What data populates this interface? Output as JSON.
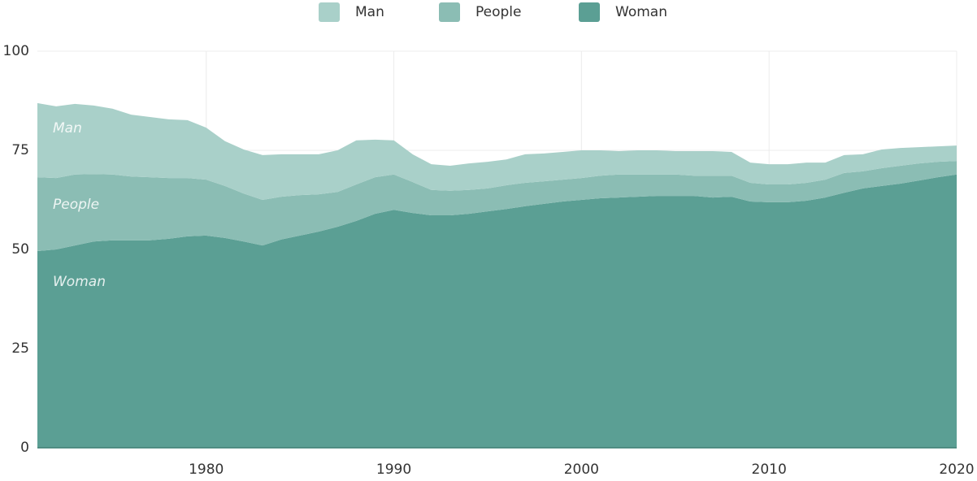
{
  "chart_data": {
    "type": "area",
    "stacked": true,
    "x": [
      1971,
      1972,
      1973,
      1974,
      1975,
      1976,
      1977,
      1978,
      1979,
      1980,
      1981,
      1982,
      1983,
      1984,
      1985,
      1986,
      1987,
      1988,
      1989,
      1990,
      1991,
      1992,
      1993,
      1994,
      1995,
      1996,
      1997,
      1998,
      1999,
      2000,
      2001,
      2002,
      2003,
      2004,
      2005,
      2006,
      2007,
      2008,
      2009,
      2010,
      2011,
      2012,
      2013,
      2014,
      2015,
      2016,
      2017,
      2018,
      2019,
      2020
    ],
    "series": [
      {
        "name": "Man",
        "color": "#a9d0c9",
        "values": [
          18.7,
          18.1,
          17.8,
          17.3,
          16.6,
          15.6,
          15.2,
          14.8,
          14.6,
          13.1,
          11.3,
          11.1,
          11.3,
          10.7,
          10.3,
          10.1,
          10.5,
          11.1,
          9.5,
          8.6,
          7,
          6.5,
          6.3,
          6.7,
          6.7,
          6.5,
          7.2,
          7,
          7,
          7,
          6.4,
          5.9,
          6.1,
          6.1,
          5.9,
          6.2,
          6.2,
          6,
          5.1,
          5.1,
          5.1,
          5.1,
          4.3,
          4.5,
          4.3,
          4.7,
          4.5,
          4.1,
          3.9,
          3.9
        ]
      },
      {
        "name": "People",
        "color": "#8bbdb4",
        "values": [
          18.6,
          18,
          17.9,
          17,
          16.6,
          16.1,
          15.9,
          15.3,
          14.7,
          14.1,
          13.1,
          12.1,
          11.5,
          10.8,
          10.2,
          9.4,
          8.8,
          9.2,
          9.2,
          8.9,
          7.8,
          6.4,
          6.2,
          6,
          5.8,
          6,
          5.9,
          5.7,
          5.5,
          5.5,
          5.7,
          5.8,
          5.6,
          5.4,
          5.4,
          5.1,
          5.5,
          5.3,
          4.7,
          4.5,
          4.5,
          4.5,
          4.5,
          5,
          4.3,
          4.5,
          4.5,
          4.3,
          3.9,
          3.4
        ]
      },
      {
        "name": "Woman",
        "color": "#5b9f94",
        "values": [
          49.6,
          50,
          51,
          52,
          52.3,
          52.3,
          52.3,
          52.7,
          53.3,
          53.5,
          52.9,
          52,
          51,
          52.5,
          53.5,
          54.5,
          55.7,
          57.2,
          59,
          60,
          59.2,
          58.6,
          58.6,
          59,
          59.6,
          60.2,
          60.9,
          61.5,
          62.1,
          62.5,
          62.9,
          63.1,
          63.3,
          63.5,
          63.5,
          63.5,
          63.1,
          63.3,
          62.1,
          61.9,
          61.9,
          62.3,
          63.1,
          64.3,
          65.4,
          66,
          66.6,
          67.4,
          68.2,
          68.9
        ]
      }
    ],
    "xlim": [
      1971,
      2020
    ],
    "xticks": [
      1980,
      1990,
      2000,
      2010,
      2020
    ],
    "ylim": [
      0,
      100
    ],
    "yticks": [
      0,
      25,
      50,
      75,
      100
    ],
    "grid": true,
    "legend": "top"
  }
}
